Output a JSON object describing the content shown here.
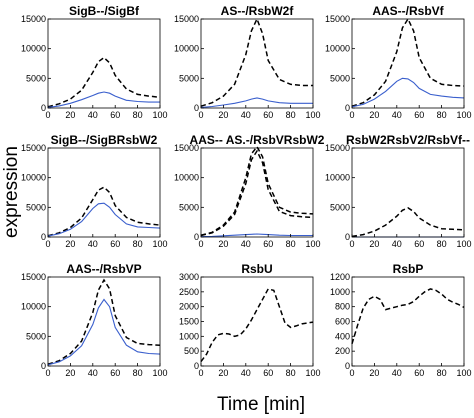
{
  "xlabel": "Time [min]",
  "ylabel": "expression",
  "colors": {
    "dashed": "#000000",
    "solid": "#3a5fcd",
    "axis": "#000000"
  },
  "chart_data": [
    {
      "type": "line",
      "title": "SigB--/SigBf",
      "xlim": [
        0,
        100
      ],
      "ylim": [
        0,
        15000
      ],
      "xticks": [
        "0",
        "20",
        "40",
        "60",
        "80",
        "100"
      ],
      "yticks": [
        "0",
        "5000",
        "10000",
        "15000"
      ],
      "series": [
        {
          "style": "dashed",
          "x": [
            0,
            10,
            20,
            30,
            40,
            45,
            50,
            55,
            60,
            70,
            80,
            90,
            100
          ],
          "y": [
            200,
            700,
            1500,
            3000,
            6000,
            7800,
            8500,
            7600,
            5500,
            3200,
            2300,
            2000,
            1800
          ]
        },
        {
          "style": "solid",
          "x": [
            0,
            10,
            20,
            30,
            40,
            45,
            50,
            55,
            60,
            70,
            80,
            90,
            100
          ],
          "y": [
            100,
            350,
            800,
            1400,
            2100,
            2500,
            2700,
            2500,
            2000,
            1300,
            1100,
            1000,
            1000
          ]
        }
      ]
    },
    {
      "type": "line",
      "title": "AS--/RsbW2f",
      "xlim": [
        0,
        100
      ],
      "ylim": [
        0,
        15000
      ],
      "xticks": [
        "0",
        "20",
        "40",
        "60",
        "80",
        "100"
      ],
      "yticks": [
        "0",
        "5000",
        "10000",
        "15000"
      ],
      "series": [
        {
          "style": "dashed",
          "x": [
            0,
            10,
            20,
            30,
            40,
            45,
            50,
            55,
            60,
            70,
            80,
            90,
            100
          ],
          "y": [
            300,
            900,
            2000,
            4000,
            9000,
            13000,
            15000,
            12500,
            8000,
            4800,
            4000,
            3800,
            3800
          ]
        },
        {
          "style": "solid",
          "x": [
            0,
            10,
            20,
            30,
            40,
            45,
            50,
            55,
            60,
            70,
            80,
            90,
            100
          ],
          "y": [
            100,
            250,
            500,
            800,
            1200,
            1500,
            1700,
            1500,
            1200,
            900,
            800,
            800,
            800
          ]
        }
      ]
    },
    {
      "type": "line",
      "title": "AAS--/RsbVf",
      "xlim": [
        0,
        100
      ],
      "ylim": [
        0,
        15000
      ],
      "xticks": [
        "0",
        "20",
        "40",
        "60",
        "80",
        "100"
      ],
      "yticks": [
        "0",
        "5000",
        "10000",
        "15000"
      ],
      "series": [
        {
          "style": "dashed",
          "x": [
            0,
            10,
            20,
            30,
            40,
            45,
            50,
            55,
            60,
            70,
            80,
            90,
            100
          ],
          "y": [
            300,
            900,
            2200,
            4500,
            9500,
            13500,
            15000,
            13000,
            8500,
            5000,
            4000,
            3800,
            3700
          ]
        },
        {
          "style": "solid",
          "x": [
            0,
            10,
            20,
            30,
            40,
            45,
            50,
            55,
            60,
            70,
            80,
            90,
            100
          ],
          "y": [
            200,
            600,
            1500,
            2800,
            4500,
            5000,
            4900,
            4300,
            3300,
            2300,
            2000,
            1800,
            1700
          ]
        }
      ]
    },
    {
      "type": "line",
      "title": "SigB--/SigBRsbW2",
      "xlim": [
        0,
        100
      ],
      "ylim": [
        0,
        15000
      ],
      "xticks": [
        "0",
        "20",
        "40",
        "60",
        "80",
        "100"
      ],
      "yticks": [
        "0",
        "5000",
        "10000",
        "15000"
      ],
      "series": [
        {
          "style": "dashed",
          "x": [
            0,
            10,
            20,
            30,
            40,
            45,
            50,
            55,
            60,
            70,
            80,
            90,
            100
          ],
          "y": [
            200,
            700,
            1600,
            3200,
            6300,
            7900,
            8400,
            7500,
            5300,
            3300,
            2500,
            2200,
            2000
          ]
        },
        {
          "style": "solid",
          "x": [
            0,
            10,
            20,
            30,
            40,
            45,
            50,
            55,
            60,
            70,
            80,
            90,
            100
          ],
          "y": [
            150,
            550,
            1300,
            2600,
            4800,
            5600,
            5700,
            5000,
            3800,
            2200,
            1700,
            1600,
            1500
          ]
        }
      ]
    },
    {
      "type": "line",
      "title": "AAS-- AS.-/RsbVRsbW2",
      "xlim": [
        0,
        100
      ],
      "ylim": [
        0,
        15000
      ],
      "xticks": [
        "0",
        "20",
        "40",
        "60",
        "80",
        "100"
      ],
      "yticks": [
        "0",
        "5000",
        "10000",
        "15000"
      ],
      "series": [
        {
          "style": "dashed",
          "x": [
            0,
            10,
            20,
            30,
            40,
            45,
            50,
            55,
            60,
            70,
            80,
            90,
            100
          ],
          "y": [
            300,
            800,
            2000,
            4200,
            10000,
            14000,
            15200,
            13500,
            9000,
            5000,
            4200,
            4000,
            3900
          ]
        },
        {
          "style": "dashed",
          "x": [
            0,
            10,
            20,
            30,
            40,
            45,
            50,
            55,
            60,
            70,
            80,
            90,
            100
          ],
          "y": [
            250,
            700,
            1800,
            3800,
            9000,
            13000,
            14500,
            12500,
            8000,
            4300,
            3600,
            3400,
            3300
          ]
        },
        {
          "style": "solid",
          "x": [
            0,
            10,
            20,
            30,
            40,
            45,
            50,
            55,
            60,
            70,
            80,
            90,
            100
          ],
          "y": [
            50,
            100,
            200,
            300,
            400,
            450,
            500,
            450,
            400,
            300,
            250,
            250,
            250
          ]
        }
      ]
    },
    {
      "type": "line",
      "title": "RsbW2RsbV2/RsbVf--",
      "xlim": [
        0,
        100
      ],
      "ylim": [
        0,
        15000
      ],
      "xticks": [
        "0",
        "20",
        "40",
        "60",
        "80",
        "100"
      ],
      "yticks": [
        "0",
        "5000",
        "10000",
        "15000"
      ],
      "series": [
        {
          "style": "dashed",
          "x": [
            0,
            10,
            20,
            30,
            40,
            45,
            50,
            55,
            60,
            70,
            80,
            90,
            100
          ],
          "y": [
            100,
            400,
            1000,
            2000,
            3500,
            4500,
            4900,
            4300,
            3200,
            2000,
            1400,
            1300,
            1200
          ]
        },
        {
          "style": "solid",
          "x": [
            0,
            100
          ],
          "y": [
            0,
            0
          ]
        }
      ]
    },
    {
      "type": "line",
      "title": "AAS--/RsbVP",
      "xlim": [
        0,
        100
      ],
      "ylim": [
        0,
        15000
      ],
      "xticks": [
        "0",
        "20",
        "40",
        "60",
        "80",
        "100"
      ],
      "yticks": [
        "0",
        "5000",
        "10000",
        "15000"
      ],
      "series": [
        {
          "style": "dashed",
          "x": [
            0,
            10,
            20,
            30,
            40,
            45,
            50,
            55,
            60,
            70,
            80,
            90,
            100
          ],
          "y": [
            300,
            900,
            2100,
            4200,
            9000,
            12800,
            14500,
            13000,
            8500,
            4800,
            3800,
            3600,
            3500
          ]
        },
        {
          "style": "solid",
          "x": [
            0,
            10,
            20,
            30,
            40,
            45,
            50,
            55,
            60,
            70,
            80,
            90,
            100
          ],
          "y": [
            200,
            700,
            1700,
            3400,
            7000,
            9800,
            11200,
            10000,
            6500,
            3500,
            2400,
            2100,
            2000
          ]
        }
      ]
    },
    {
      "type": "line",
      "title": "RsbU",
      "xlim": [
        0,
        100
      ],
      "ylim": [
        0,
        3000
      ],
      "xticks": [
        "0",
        "20",
        "40",
        "60",
        "80",
        "100"
      ],
      "yticks": [
        "0",
        "500",
        "1000",
        "1500",
        "2000",
        "2500",
        "3000"
      ],
      "series": [
        {
          "style": "dashed",
          "x": [
            0,
            5,
            10,
            15,
            20,
            25,
            30,
            35,
            40,
            45,
            50,
            55,
            60,
            65,
            70,
            75,
            80,
            85,
            90,
            95,
            100
          ],
          "y": [
            150,
            400,
            800,
            1050,
            1100,
            1080,
            1000,
            1050,
            1250,
            1550,
            1900,
            2250,
            2600,
            2550,
            2000,
            1450,
            1300,
            1350,
            1420,
            1450,
            1480
          ]
        }
      ]
    },
    {
      "type": "line",
      "title": "RsbP",
      "xlim": [
        0,
        100
      ],
      "ylim": [
        0,
        1200
      ],
      "xticks": [
        "0",
        "20",
        "40",
        "60",
        "80",
        "100"
      ],
      "yticks": [
        "0",
        "200",
        "400",
        "600",
        "800",
        "1000",
        "1200"
      ],
      "series": [
        {
          "style": "dashed",
          "x": [
            0,
            5,
            10,
            15,
            20,
            25,
            30,
            35,
            40,
            45,
            50,
            55,
            60,
            65,
            70,
            75,
            80,
            85,
            90,
            95,
            100
          ],
          "y": [
            300,
            550,
            780,
            900,
            940,
            900,
            760,
            780,
            800,
            820,
            830,
            870,
            940,
            1000,
            1040,
            1020,
            970,
            900,
            860,
            830,
            790
          ]
        }
      ]
    }
  ]
}
